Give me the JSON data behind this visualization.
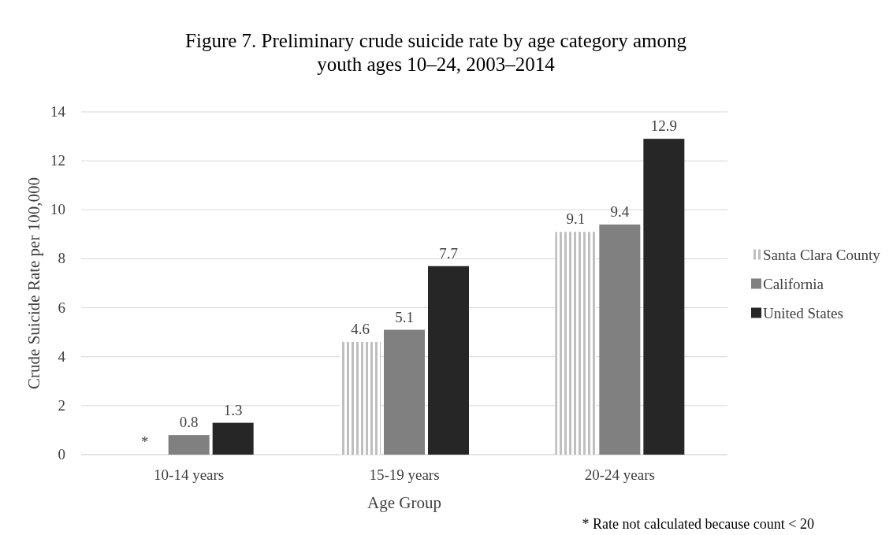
{
  "chart_data": {
    "type": "bar",
    "title": "Figure 7. Preliminary crude suicide rate by age category among youth ages 10–24, 2003–2014",
    "xlabel": "Age Group",
    "ylabel": "Crude Suicide Rate per 100,000",
    "categories": [
      "10-14 years",
      "15-19 years",
      "20-24 years"
    ],
    "series": [
      {
        "name": "Santa Clara County",
        "color": "#bfbfbf",
        "values": [
          null,
          4.6,
          9.1
        ],
        "value_labels": [
          "*",
          "4.6",
          "9.1"
        ]
      },
      {
        "name": "California",
        "color": "#808080",
        "values": [
          0.8,
          5.1,
          9.4
        ],
        "value_labels": [
          "0.8",
          "5.1",
          "9.4"
        ]
      },
      {
        "name": "United States",
        "color": "#262626",
        "values": [
          1.3,
          7.7,
          12.9
        ],
        "value_labels": [
          "1.3",
          "7.7",
          "12.9"
        ]
      }
    ],
    "ylim": [
      0,
      14
    ],
    "yticks": [
      0,
      2,
      4,
      6,
      8,
      10,
      12,
      14
    ],
    "grid": "y",
    "legend": "right",
    "annotations": [
      "* Rate not calculated because count < 20"
    ]
  }
}
